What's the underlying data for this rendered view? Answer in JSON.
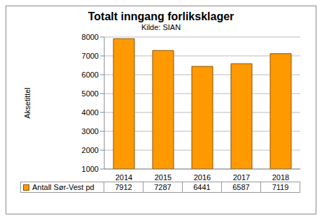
{
  "chart_data": {
    "type": "bar",
    "title": "Totalt inngang forliksklager",
    "subtitle": "Kilde: SIAN",
    "y_label": "Aksetittel",
    "categories": [
      "2014",
      "2015",
      "2016",
      "2017",
      "2018"
    ],
    "series": [
      {
        "name": "Antall Sør-Vest pd",
        "color": "#ff9900",
        "values": [
          7912,
          7287,
          6441,
          6587,
          7119
        ]
      }
    ],
    "ylim": [
      1000,
      8000
    ],
    "yticks": [
      1000,
      2000,
      3000,
      4000,
      5000,
      6000,
      7000,
      8000
    ],
    "grid": true
  }
}
